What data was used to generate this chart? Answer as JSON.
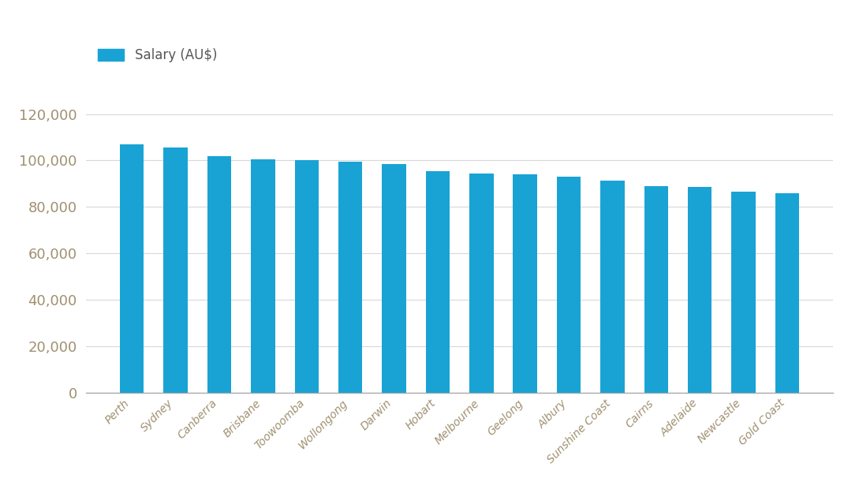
{
  "categories": [
    "Perth",
    "Sydney",
    "Canberra",
    "Brisbane",
    "Toowoomba",
    "Wollongong",
    "Darwin",
    "Hobart",
    "Melbourne",
    "Geelong",
    "Albury",
    "Sunshine Coast",
    "Cairns",
    "Adelaide",
    "Newcastle",
    "Gold Coast"
  ],
  "values": [
    107000,
    105500,
    102000,
    100500,
    100000,
    99500,
    98500,
    95500,
    94500,
    94000,
    93000,
    91500,
    89000,
    88500,
    86500,
    86000
  ],
  "bar_color": "#19a3d4",
  "legend_label": "Salary (AU$)",
  "ylim": [
    0,
    130000
  ],
  "yticks": [
    0,
    20000,
    40000,
    60000,
    80000,
    100000,
    120000
  ],
  "background_color": "#ffffff",
  "grid_color": "#d8d8d8",
  "tick_color": "#a09070",
  "ytick_fontsize": 13,
  "xtick_fontsize": 10,
  "legend_fontsize": 12,
  "bar_width": 0.55
}
